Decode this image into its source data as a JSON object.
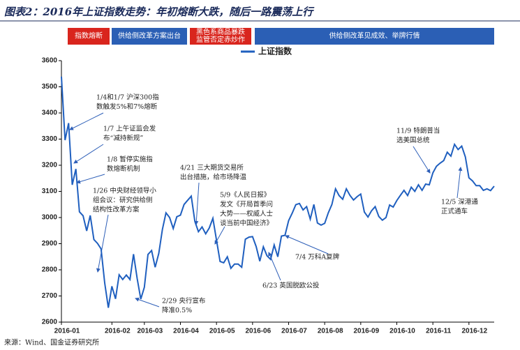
{
  "chart_data": {
    "type": "line",
    "title": "图表2：2016年上证指数走势：年初熔断大跌，随后一路震荡上行",
    "source": "来源：Wind、国金证券研究所",
    "banners": [
      {
        "lines": [
          "指数熔断"
        ],
        "color": "#d9251d"
      },
      {
        "lines": [
          "供给侧改革方案出台"
        ],
        "color": "#2b5fb5"
      },
      {
        "lines": [
          "黑色系商品暴跌",
          "监管否定赤炒作"
        ],
        "color": "#d9251d"
      },
      {
        "lines": [
          "供给侧改革见成效、举牌行情"
        ],
        "color": "#2b5fb5"
      }
    ],
    "annotations": [
      {
        "lines": [
          "1/4和1/7 沪深300指",
          "数触发5%和7%熔断"
        ]
      },
      {
        "lines": [
          "1/7 上午证监会发",
          "布“减持新规”"
        ]
      },
      {
        "lines": [
          "1/8 暂停实施指",
          "数熔断机制"
        ]
      },
      {
        "lines": [
          "1/26 中央财经领导小",
          "组会议：研究供给侧",
          "结构性改革方案"
        ]
      },
      {
        "lines": [
          "2/29 央行宣布",
          "降准0.5%"
        ]
      },
      {
        "lines": [
          "4/21 三大期货交易所",
          "出台措施，给市场降温"
        ]
      },
      {
        "lines": [
          "5/9《人民日报》",
          "发文《开局首季问",
          "大势——权威人士",
          "谈当前中国经济》"
        ]
      },
      {
        "lines": [
          "6/23 英国脱欧公投"
        ]
      },
      {
        "lines": [
          "7/4 万科A复牌"
        ]
      },
      {
        "lines": [
          "11/9 特朗普当",
          "选美国总统"
        ]
      },
      {
        "lines": [
          "12/5 深港通",
          "正式通车"
        ]
      }
    ],
    "categories": [
      "2016-01",
      null,
      null,
      null,
      null,
      null,
      null,
      null,
      null,
      null,
      null,
      null,
      null,
      null,
      "2016-02",
      null,
      null,
      null,
      null,
      null,
      null,
      null,
      null,
      "2016-03",
      null,
      null,
      null,
      null,
      null,
      null,
      null,
      null,
      null,
      "2016-04",
      null,
      null,
      null,
      null,
      null,
      null,
      null,
      null,
      null,
      "2016-05",
      null,
      null,
      null,
      null,
      null,
      null,
      null,
      null,
      null,
      "2016-06",
      null,
      null,
      null,
      null,
      null,
      null,
      null,
      null,
      null,
      "2016-07",
      null,
      null,
      null,
      null,
      null,
      null,
      null,
      null,
      null,
      "2016-08",
      null,
      null,
      null,
      null,
      null,
      null,
      null,
      null,
      null,
      "2016-09",
      null,
      null,
      null,
      null,
      null,
      null,
      null,
      null,
      null,
      "2016-10",
      null,
      null,
      null,
      null,
      null,
      null,
      null,
      null,
      null,
      "2016-11",
      null,
      null,
      null,
      null,
      null,
      null,
      null,
      null,
      null,
      "2016-12",
      null,
      null,
      null,
      null,
      null,
      null,
      null
    ],
    "series": [
      {
        "name": "上证指数",
        "color": "#1f5fbf",
        "values": [
          3539,
          3296,
          3361,
          3125,
          3186,
          3022,
          3007,
          2949,
          3008,
          2916,
          2901,
          2880,
          2750,
          2655,
          2737,
          2689,
          2781,
          2763,
          2780,
          2763,
          2860,
          2767,
          2688,
          2733,
          2859,
          2874,
          2810,
          2863,
          2955,
          3018,
          3000,
          2958,
          3003,
          3009,
          3050,
          3066,
          3082,
          2985,
          2946,
          2964,
          2938,
          2960,
          2997,
          2913,
          2832,
          2827,
          2850,
          2806,
          2822,
          2822,
          2810,
          2917,
          2925,
          2927,
          2889,
          2833,
          2888,
          2854,
          2840,
          2895,
          2850,
          2929,
          2932,
          2988,
          3017,
          3049,
          3054,
          3029,
          3042,
          2994,
          3050,
          2979,
          2971,
          2978,
          3018,
          3050,
          3110,
          3084,
          3070,
          3110,
          3085,
          3067,
          3080,
          3090,
          3021,
          3002,
          3026,
          3042,
          3004,
          2990,
          3000,
          3048,
          3040,
          3065,
          3085,
          3104,
          3084,
          3116,
          3100,
          3125,
          3104,
          3128,
          3125,
          3171,
          3196,
          3208,
          3218,
          3250,
          3235,
          3280,
          3260,
          3273,
          3232,
          3152,
          3140,
          3122,
          3122,
          3104,
          3110,
          3103,
          3120
        ]
      }
    ],
    "ylim": [
      2600,
      3600
    ],
    "yticks": [
      2600,
      2700,
      2800,
      2900,
      3000,
      3100,
      3200,
      3300,
      3400,
      3500,
      3600
    ]
  }
}
